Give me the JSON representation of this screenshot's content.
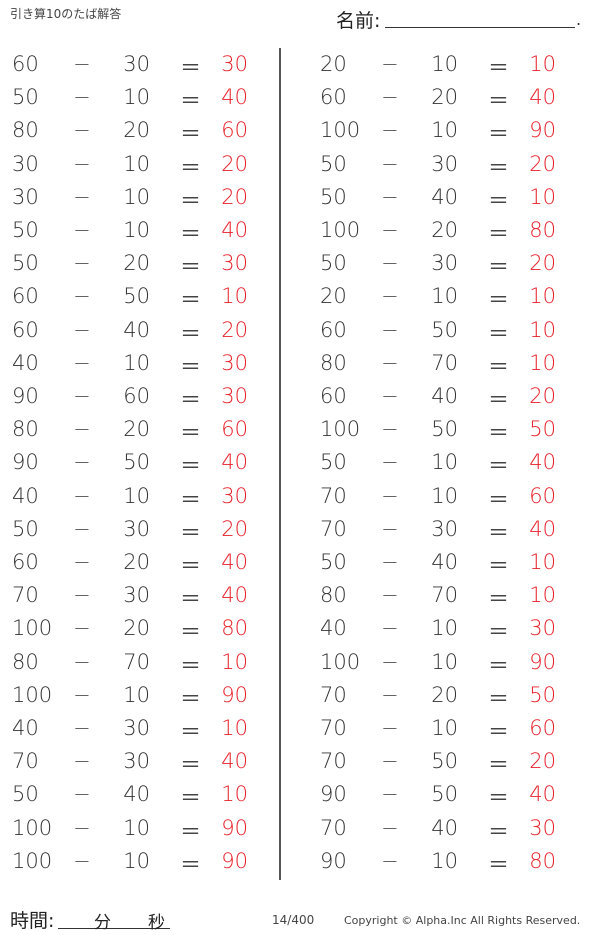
{
  "header": {
    "title": "引き算10のたば解答",
    "name_label": "名前:",
    "name_end": "."
  },
  "operators": {
    "minus": "−",
    "equals": "＝"
  },
  "problems": {
    "left": [
      [
        "60",
        "30",
        "30"
      ],
      [
        "50",
        "10",
        "40"
      ],
      [
        "80",
        "20",
        "60"
      ],
      [
        "30",
        "10",
        "20"
      ],
      [
        "30",
        "10",
        "20"
      ],
      [
        "50",
        "10",
        "40"
      ],
      [
        "50",
        "20",
        "30"
      ],
      [
        "60",
        "50",
        "10"
      ],
      [
        "60",
        "40",
        "20"
      ],
      [
        "40",
        "10",
        "30"
      ],
      [
        "90",
        "60",
        "30"
      ],
      [
        "80",
        "20",
        "60"
      ],
      [
        "90",
        "50",
        "40"
      ],
      [
        "40",
        "10",
        "30"
      ],
      [
        "50",
        "30",
        "20"
      ],
      [
        "60",
        "20",
        "40"
      ],
      [
        "70",
        "30",
        "40"
      ],
      [
        "100",
        "20",
        "80"
      ],
      [
        "80",
        "70",
        "10"
      ],
      [
        "100",
        "10",
        "90"
      ],
      [
        "40",
        "30",
        "10"
      ],
      [
        "70",
        "30",
        "40"
      ],
      [
        "50",
        "40",
        "10"
      ],
      [
        "100",
        "10",
        "90"
      ],
      [
        "100",
        "10",
        "90"
      ]
    ],
    "right": [
      [
        "20",
        "10",
        "10"
      ],
      [
        "60",
        "20",
        "40"
      ],
      [
        "100",
        "10",
        "90"
      ],
      [
        "50",
        "30",
        "20"
      ],
      [
        "50",
        "40",
        "10"
      ],
      [
        "100",
        "20",
        "80"
      ],
      [
        "50",
        "30",
        "20"
      ],
      [
        "20",
        "10",
        "10"
      ],
      [
        "60",
        "50",
        "10"
      ],
      [
        "80",
        "70",
        "10"
      ],
      [
        "60",
        "40",
        "20"
      ],
      [
        "100",
        "50",
        "50"
      ],
      [
        "50",
        "10",
        "40"
      ],
      [
        "70",
        "10",
        "60"
      ],
      [
        "70",
        "30",
        "40"
      ],
      [
        "50",
        "40",
        "10"
      ],
      [
        "80",
        "70",
        "10"
      ],
      [
        "40",
        "10",
        "30"
      ],
      [
        "100",
        "10",
        "90"
      ],
      [
        "70",
        "20",
        "50"
      ],
      [
        "70",
        "10",
        "60"
      ],
      [
        "70",
        "50",
        "20"
      ],
      [
        "90",
        "50",
        "40"
      ],
      [
        "70",
        "40",
        "30"
      ],
      [
        "90",
        "10",
        "80"
      ]
    ]
  },
  "footer": {
    "time_label": "時間:",
    "minutes": "分",
    "seconds": "秒",
    "page": "14/400",
    "copyright": "Copyright ©  Alpha.Inc All Rights Reserved."
  },
  "colors": {
    "answer": "#e8202a",
    "text": "#333333"
  }
}
